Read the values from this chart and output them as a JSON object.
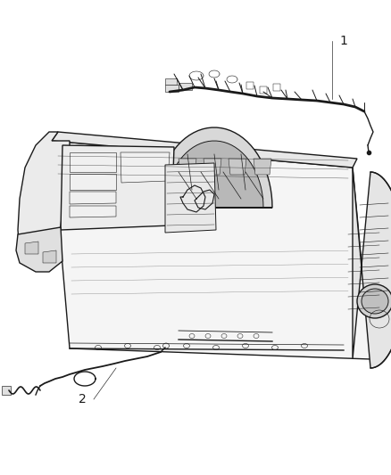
{
  "background_color": "#ffffff",
  "line_color": "#1a1a1a",
  "line_color2": "#333333",
  "label_1": "1",
  "label_2": "2",
  "figsize": [
    4.38,
    5.33
  ],
  "dpi": 100,
  "lw_main": 1.0,
  "lw_thin": 0.5,
  "lw_thick": 1.5,
  "gray_light": "#e8e8e8",
  "gray_mid": "#d0d0d0",
  "gray_dark": "#b0b0b0",
  "white": "#ffffff"
}
